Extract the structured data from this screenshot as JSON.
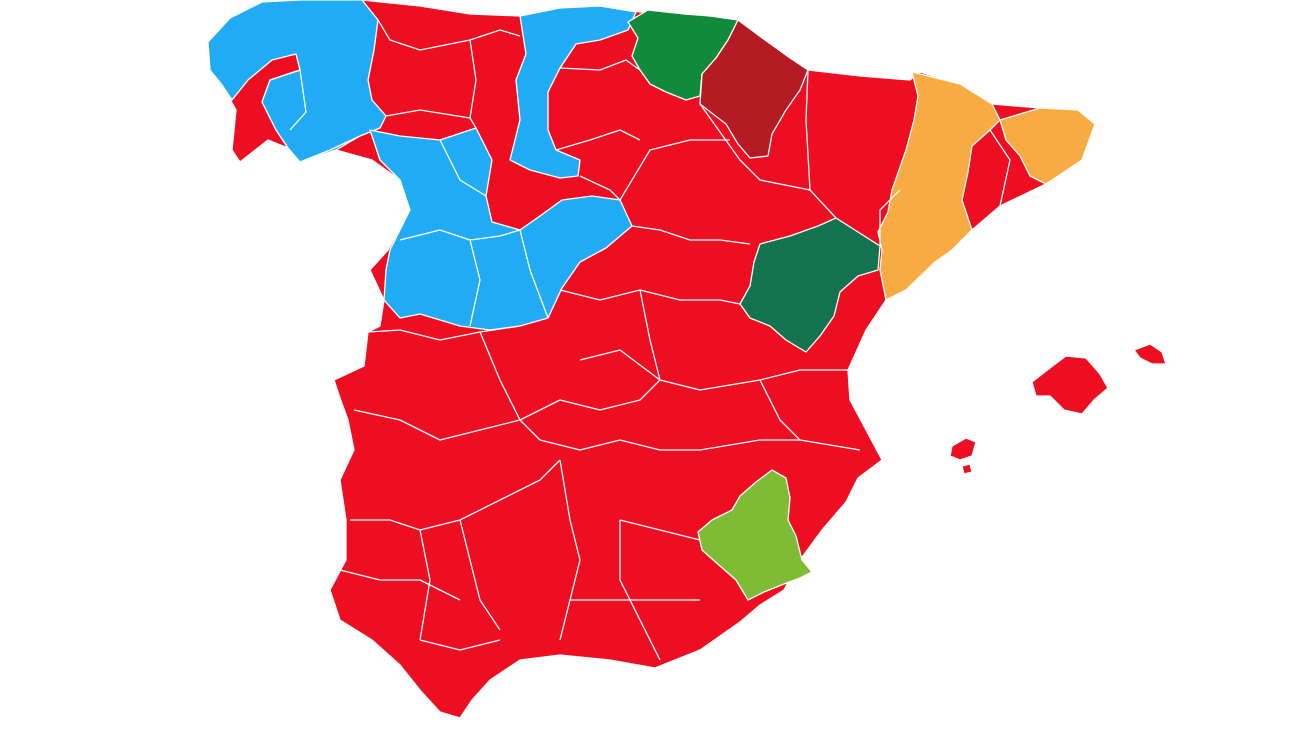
{
  "map": {
    "country": "",
    "background": "#ffffff",
    "border_color": "#ffffff",
    "party_colors": {
      "red": "#ee0e22",
      "light_blue": "#22abf5",
      "dark_green": "#128a3c",
      "dark_red": "#b51b23",
      "orange": "#f8ab42",
      "teal_green": "#137250",
      "lime_green": "#7fbc35"
    }
  }
}
